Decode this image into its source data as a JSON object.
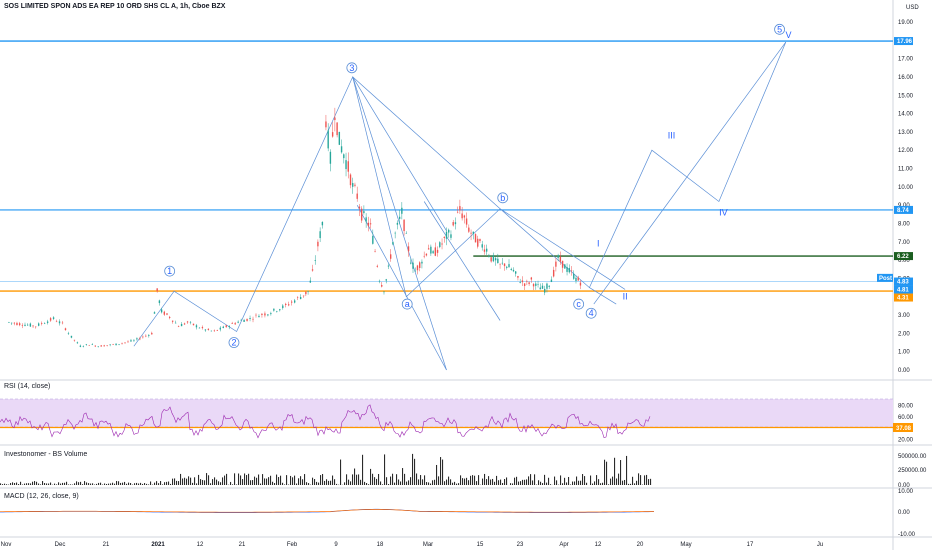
{
  "header": {
    "title": "SOS LIMITED SPON ADS EA REP 10 ORD SHS CL A, 1h, Cboe BZX",
    "currency": "USD"
  },
  "colors": {
    "candle_up": "#26a69a",
    "candle_down": "#ef5350",
    "wave_line": "#5b8fd6",
    "h_blue": "#2196f3",
    "h_green": "#1b5e20",
    "h_orange": "#ff9800",
    "rsi_line": "#9c27b0",
    "rsi_band": "#e8d5f5",
    "volume": "#2b2b2b"
  },
  "chart_data": {
    "type": "candlestick",
    "price_axis": {
      "min": 0,
      "max": 19,
      "ticks": [
        0,
        1,
        2,
        3,
        4,
        5,
        6,
        7,
        8,
        9,
        10,
        11,
        12,
        13,
        14,
        15,
        16,
        17,
        18,
        19
      ]
    },
    "x_axis_labels": [
      "Nov",
      "Dec",
      "21",
      "2021",
      "12",
      "21",
      "Feb",
      "9",
      "18",
      "Mar",
      "15",
      "23",
      "Apr",
      "12",
      "20",
      "May",
      "17",
      "Ju"
    ],
    "close_path": [
      [
        1.0,
        2.6
      ],
      [
        2.5,
        2.5
      ],
      [
        4.0,
        2.4
      ],
      [
        5.0,
        2.6
      ],
      [
        6.0,
        2.8
      ],
      [
        7.0,
        2.5
      ],
      [
        8.0,
        1.8
      ],
      [
        9.0,
        1.3
      ],
      [
        10.0,
        1.4
      ],
      [
        11.0,
        1.3
      ],
      [
        12.0,
        1.35
      ],
      [
        13.0,
        1.4
      ],
      [
        14.0,
        1.5
      ],
      [
        15.0,
        1.6
      ],
      [
        16.0,
        1.8
      ],
      [
        17.0,
        2.0
      ],
      [
        17.6,
        4.3
      ],
      [
        18.1,
        3.2
      ],
      [
        19.0,
        2.9
      ],
      [
        20.0,
        2.4
      ],
      [
        21.0,
        2.6
      ],
      [
        22.0,
        2.4
      ],
      [
        23.0,
        2.2
      ],
      [
        24.0,
        2.1
      ],
      [
        25.0,
        2.3
      ],
      [
        26.0,
        2.5
      ],
      [
        27.0,
        2.7
      ],
      [
        28.0,
        2.8
      ],
      [
        29.0,
        3.0
      ],
      [
        30.0,
        3.1
      ],
      [
        31.0,
        3.3
      ],
      [
        32.0,
        3.5
      ],
      [
        33.0,
        3.8
      ],
      [
        34.0,
        4.1
      ],
      [
        34.5,
        4.3
      ],
      [
        35.0,
        5.3
      ],
      [
        35.6,
        6.8
      ],
      [
        36.1,
        8.0
      ],
      [
        36.5,
        13.7
      ],
      [
        37.0,
        11.5
      ],
      [
        37.5,
        14.2
      ],
      [
        38.0,
        12.5
      ],
      [
        38.5,
        11.8
      ],
      [
        39.0,
        11.0
      ],
      [
        39.5,
        10.0
      ],
      [
        40.0,
        9.5
      ],
      [
        40.5,
        8.5
      ],
      [
        41.0,
        8.2
      ],
      [
        41.5,
        7.8
      ],
      [
        42.0,
        6.5
      ],
      [
        42.5,
        5.0
      ],
      [
        43.0,
        4.4
      ],
      [
        43.5,
        5.5
      ],
      [
        44.0,
        7.0
      ],
      [
        44.5,
        7.8
      ],
      [
        45.0,
        8.6
      ],
      [
        45.5,
        7.2
      ],
      [
        46.0,
        6.0
      ],
      [
        46.5,
        5.4
      ],
      [
        47.0,
        5.8
      ],
      [
        47.5,
        6.2
      ],
      [
        48.0,
        6.7
      ],
      [
        48.5,
        6.3
      ],
      [
        49.0,
        6.6
      ],
      [
        49.5,
        6.9
      ],
      [
        50.0,
        7.3
      ],
      [
        50.5,
        7.5
      ],
      [
        51.0,
        8.2
      ],
      [
        51.5,
        8.7
      ],
      [
        52.0,
        8.3
      ],
      [
        52.5,
        7.7
      ],
      [
        53.0,
        7.3
      ],
      [
        53.5,
        7.0
      ],
      [
        54.0,
        6.8
      ],
      [
        54.5,
        6.6
      ],
      [
        55.0,
        6.1
      ],
      [
        55.5,
        6.0
      ],
      [
        56.0,
        5.7
      ],
      [
        56.5,
        5.8
      ],
      [
        57.0,
        5.6
      ],
      [
        57.5,
        5.4
      ],
      [
        58.0,
        5.0
      ],
      [
        58.5,
        4.8
      ],
      [
        59.0,
        4.7
      ],
      [
        59.5,
        4.9
      ],
      [
        60.0,
        4.6
      ],
      [
        60.5,
        4.5
      ],
      [
        61.0,
        4.4
      ],
      [
        61.5,
        4.7
      ],
      [
        62.0,
        5.3
      ],
      [
        62.5,
        6.1
      ],
      [
        63.0,
        5.8
      ],
      [
        63.5,
        5.5
      ],
      [
        64.0,
        5.3
      ],
      [
        64.5,
        5.0
      ],
      [
        65.0,
        4.8
      ],
      [
        65.3,
        4.81
      ]
    ]
  },
  "price_badges": [
    {
      "label": "17.96",
      "value": 17.96,
      "color": "#2196f3"
    },
    {
      "label": "8.74",
      "value": 8.74,
      "color": "#2196f3"
    },
    {
      "label": "6.22",
      "value": 6.22,
      "color": "#1b5e20"
    },
    {
      "label": "Post",
      "value": 5.03,
      "color": "#2196f3"
    },
    {
      "label": "4.83",
      "value": 4.83,
      "color": "#2196f3"
    },
    {
      "label": "4.81",
      "value": 4.81,
      "color": "#2196f3"
    },
    {
      "label": "4.31",
      "value": 4.31,
      "color": "#ff9800"
    }
  ],
  "wave_labels": [
    {
      "label": "1",
      "circled": true
    },
    {
      "label": "2",
      "circled": true
    },
    {
      "label": "3",
      "circled": true
    },
    {
      "label": "4",
      "circled": true
    },
    {
      "label": "5",
      "circled": true
    },
    {
      "label": "a",
      "circled": true
    },
    {
      "label": "b",
      "circled": true
    },
    {
      "label": "c",
      "circled": true
    },
    {
      "label": "I",
      "circled": false
    },
    {
      "label": "II",
      "circled": false
    },
    {
      "label": "III",
      "circled": false
    },
    {
      "label": "IV",
      "circled": false
    },
    {
      "label": "V",
      "circled": false
    }
  ],
  "rsi": {
    "label": "RSI (14, close)",
    "value_badge": "37.08",
    "ticks": [
      "80.00",
      "60.00",
      "40.00",
      "20.00"
    ]
  },
  "volume": {
    "label": "Investonomer - BS Volume",
    "ticks": [
      "500000.00",
      "250000.00",
      "0.00"
    ]
  },
  "macd": {
    "label": "MACD (12, 26, close, 9)",
    "ticks": [
      "10.00",
      "0.00",
      "-10.00"
    ]
  }
}
